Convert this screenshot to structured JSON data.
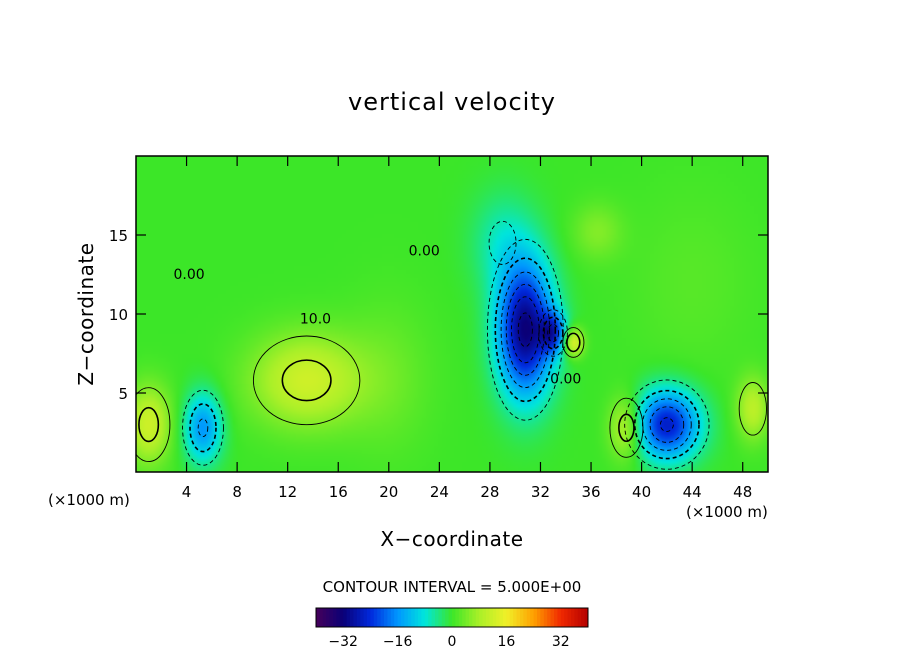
{
  "chart_data": {
    "type": "heatmap",
    "title": "vertical velocity",
    "xlabel": "X−coordinate",
    "ylabel": "Z−coordinate",
    "x_unit_left": "(×1000 m)",
    "x_unit_right": "(×1000 m)",
    "xlim": [
      0,
      50
    ],
    "ylim": [
      0,
      20
    ],
    "x_ticks": [
      4,
      8,
      12,
      16,
      20,
      24,
      28,
      32,
      36,
      40,
      44,
      48
    ],
    "y_ticks": [
      5,
      10,
      15
    ],
    "contour_interval_text": "CONTOUR INTERVAL = 5.000E+00",
    "contour_labels": [
      {
        "text": "0.00",
        "x": 4.2,
        "y": 12.2
      },
      {
        "text": "10.0",
        "x": 14.2,
        "y": 9.4
      },
      {
        "text": "0.00",
        "x": 22.8,
        "y": 13.7
      },
      {
        "text": "0.00",
        "x": 34.0,
        "y": 5.6
      }
    ],
    "blobs": [
      {
        "x": 30.8,
        "y": 9.0,
        "rx": 2.2,
        "ry": 4.2,
        "v": -32
      },
      {
        "x": 33.0,
        "y": 8.8,
        "rx": 1.0,
        "ry": 1.3,
        "v": -18
      },
      {
        "x": 42.0,
        "y": 3.0,
        "rx": 2.6,
        "ry": 2.2,
        "v": -26
      },
      {
        "x": 5.3,
        "y": 2.8,
        "rx": 1.5,
        "ry": 2.2,
        "v": -16
      },
      {
        "x": 13.5,
        "y": 5.8,
        "rx": 4.5,
        "ry": 3.0,
        "v": 12
      },
      {
        "x": 1.0,
        "y": 3.0,
        "rx": 1.8,
        "ry": 2.5,
        "v": 12
      },
      {
        "x": 38.8,
        "y": 2.8,
        "rx": 1.4,
        "ry": 2.0,
        "v": 12
      },
      {
        "x": 34.6,
        "y": 8.2,
        "rx": 0.8,
        "ry": 0.9,
        "v": 15
      },
      {
        "x": 48.8,
        "y": 4.0,
        "rx": 1.3,
        "ry": 2.0,
        "v": 10
      },
      {
        "x": 29.0,
        "y": 14.5,
        "rx": 2.5,
        "ry": 3.2,
        "v": -6
      },
      {
        "x": 36.5,
        "y": 15.2,
        "rx": 2.0,
        "ry": 1.8,
        "v": 5
      },
      {
        "x": 20.0,
        "y": 6.0,
        "rx": 3.5,
        "ry": 5.0,
        "v": 3
      },
      {
        "x": 44.0,
        "y": 12.0,
        "rx": 5.0,
        "ry": 6.0,
        "v": 2
      }
    ],
    "colorbar": {
      "min": -40,
      "max": 40,
      "tick_values": [
        -32,
        -16,
        0,
        16,
        32
      ],
      "tick_labels": [
        "−32",
        "−16",
        "0",
        "16",
        "32"
      ]
    }
  }
}
